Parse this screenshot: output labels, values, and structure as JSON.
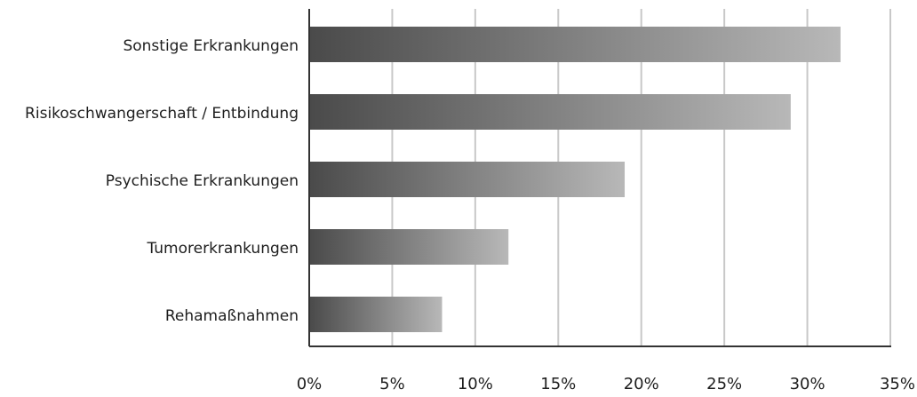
{
  "chart_data": {
    "type": "bar",
    "orientation": "horizontal",
    "categories": [
      "Sonstige Erkrankungen",
      "Risikoschwangerschaft / Entbindung",
      "Psychische Erkrankungen",
      "Tumorerkrankungen",
      "Rehamaßnahmen"
    ],
    "values": [
      32,
      29,
      19,
      12,
      8
    ],
    "unit": "%",
    "xlim": [
      0,
      35
    ],
    "x_ticks": [
      0,
      5,
      10,
      15,
      20,
      25,
      30,
      35
    ],
    "x_tick_labels": [
      "0%",
      "5%",
      "10%",
      "15%",
      "20%",
      "25%",
      "30%",
      "35%"
    ],
    "title": "",
    "xlabel": "",
    "ylabel": "",
    "grid": "vertical",
    "legend": "none",
    "colors": {
      "bar_gradient_start": "#4a4a4a",
      "bar_gradient_end": "#b8b8b8",
      "grid": "#c8c8c8",
      "axis": "#333333"
    }
  }
}
